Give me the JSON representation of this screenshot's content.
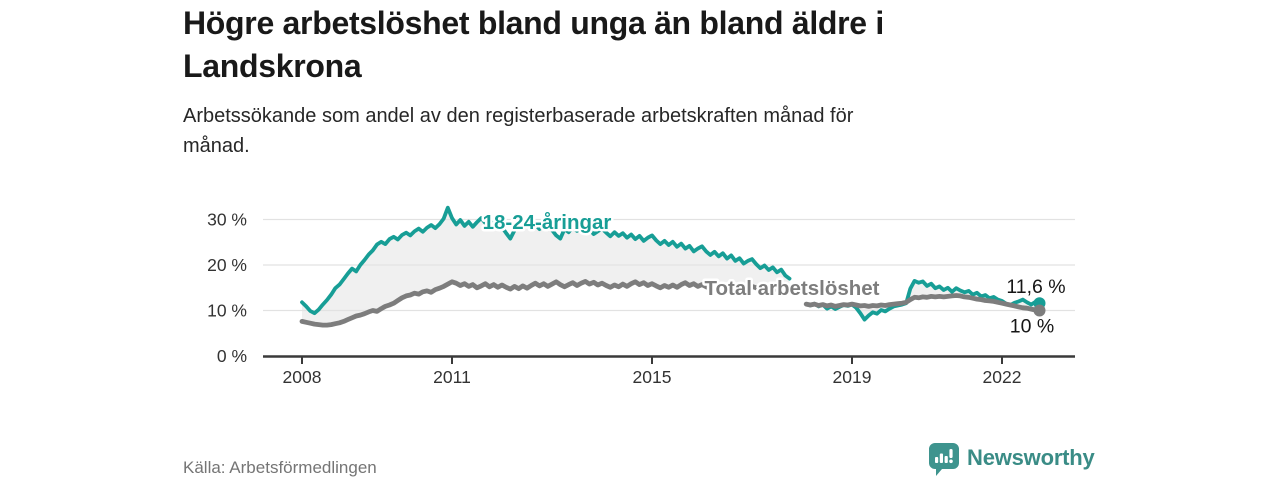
{
  "header": {
    "title": "Högre arbetslöshet bland unga än bland äldre i Landskrona",
    "title_lines": [
      "Högre arbetslöshet bland unga än bland äldre i",
      "Landskrona"
    ],
    "subtitle_lines": [
      "Arbetssökande som andel av den registerbaserade arbetskraften månad för",
      "månad."
    ]
  },
  "footer": {
    "source": "Källa: Arbetsförmedlingen",
    "brand": "Newsworthy"
  },
  "colors": {
    "youth_line": "#179e96",
    "total_line": "#7d7d7d",
    "band_fill": "#f0f0f0",
    "gridline": "#e2e2e2",
    "axis": "#3a3a3a",
    "tick_label": "#333333",
    "end_label": "#161616",
    "logo_teal": "#3e948e"
  },
  "chart_data": {
    "type": "line",
    "title": "Högre arbetslöshet bland unga än bland äldre i Landskrona",
    "subtitle": "Arbetssökande som andel av den registerbaserade arbetskraften månad för månad.",
    "xlabel": "",
    "ylabel": "",
    "grid": true,
    "legend_position": "inline-labels",
    "ylim": [
      0,
      33
    ],
    "yticks": [
      0,
      10,
      20,
      30
    ],
    "ytick_labels": [
      "0 %",
      "10 %",
      "20 %",
      "30 %"
    ],
    "xticks": [
      2008,
      2011,
      2015,
      2019,
      2022
    ],
    "xtick_labels": [
      "2008",
      "2011",
      "2015",
      "2019",
      "2022"
    ],
    "x_unit": "year-month",
    "note": "two segments per series due to statistics break late 2017",
    "series": [
      {
        "name": "18-24-åringar",
        "color": "#179e96",
        "label_pos": {
          "t": 2012.9,
          "v": 29.5
        },
        "end_value": 11.6,
        "end_label": "11,6 %",
        "end_label_pos": {
          "t": 2022.68,
          "v": 15.4
        },
        "segments": [
          {
            "start": 2008.0,
            "values": [
              11.8,
              10.9,
              9.9,
              9.4,
              10.2,
              11.3,
              12.3,
              13.5,
              14.9,
              15.7,
              16.9,
              18.1,
              19.2,
              18.6,
              20.0,
              21.1,
              22.3,
              23.2,
              24.5,
              25.1,
              24.6,
              25.7,
              26.2,
              25.6,
              26.6,
              27.1,
              26.5,
              27.4,
              28.0,
              27.3,
              28.2,
              28.8,
              28.1,
              29.0,
              30.2,
              32.6,
              30.3,
              28.9,
              29.9,
              28.6,
              29.5,
              28.4,
              29.4,
              30.3,
              29.2,
              30.0,
              28.7,
              29.5,
              28.3,
              27.0,
              25.8,
              27.6,
              28.7,
              28.0,
              29.0,
              28.3,
              28.9,
              27.9,
              28.5,
              29.0,
              27.7,
              26.5,
              25.8,
              27.9,
              27.2,
              28.3,
              27.5,
              28.1,
              27.0,
              27.8,
              26.8,
              27.4,
              28.0,
              27.1,
              26.3,
              27.2,
              26.4,
              27.0,
              26.0,
              26.7,
              25.7,
              26.4,
              25.3,
              26.0,
              26.5,
              25.4,
              24.6,
              25.3,
              24.4,
              25.1,
              24.0,
              24.7,
              23.6,
              24.2,
              23.0,
              23.6,
              24.1,
              23.0,
              22.2,
              22.9,
              21.9,
              22.6,
              21.4,
              22.1,
              20.9,
              21.5,
              20.3,
              20.9,
              21.3,
              20.2,
              19.3,
              19.9,
              18.9,
              19.5,
              18.4,
              19.0,
              17.7,
              17.0
            ]
          },
          {
            "start": 2018.0833,
            "values": [
              11.4,
              11.1,
              11.5,
              10.9,
              11.3,
              10.4,
              10.9,
              10.3,
              10.8,
              11.2,
              11.0,
              11.3,
              10.6,
              9.4,
              8.0,
              8.9,
              9.6,
              9.3,
              10.1,
              9.8,
              10.4,
              10.9,
              11.1,
              11.3,
              11.6,
              14.8,
              16.5,
              16.1,
              16.4,
              15.4,
              15.9,
              14.9,
              15.3,
              14.5,
              15.0,
              14.1,
              14.9,
              14.4,
              14.0,
              14.3,
              13.5,
              13.9,
              13.1,
              13.4,
              12.7,
              13.0,
              12.4,
              12.1,
              11.5,
              11.2,
              11.7,
              12.0,
              12.4,
              11.8,
              11.3,
              11.9,
              11.6
            ]
          }
        ]
      },
      {
        "name": "Total arbetslöshet",
        "color": "#7d7d7d",
        "label_pos": {
          "t": 2017.8,
          "v": 14.9
        },
        "end_value": 10,
        "end_label": "10 %",
        "end_label_pos": {
          "t": 2022.6,
          "v": 6.7
        },
        "segments": [
          {
            "start": 2008.0,
            "values": [
              7.6,
              7.4,
              7.2,
              7.0,
              6.9,
              6.8,
              6.8,
              6.9,
              7.1,
              7.3,
              7.6,
              8.0,
              8.4,
              8.8,
              9.0,
              9.3,
              9.7,
              10.0,
              9.8,
              10.4,
              10.9,
              11.2,
              11.6,
              12.2,
              12.8,
              13.2,
              13.4,
              13.8,
              13.6,
              14.1,
              14.3,
              14.0,
              14.6,
              14.9,
              15.3,
              15.8,
              16.3,
              16.0,
              15.5,
              15.9,
              15.3,
              15.7,
              15.0,
              15.4,
              15.9,
              15.2,
              15.7,
              15.1,
              15.6,
              15.1,
              14.7,
              15.3,
              14.8,
              15.4,
              14.9,
              15.5,
              16.0,
              15.4,
              15.9,
              15.3,
              15.8,
              16.3,
              15.7,
              15.2,
              15.7,
              16.1,
              15.5,
              16.0,
              16.4,
              15.8,
              16.2,
              15.6,
              16.0,
              15.5,
              15.1,
              15.6,
              15.2,
              15.8,
              15.3,
              15.9,
              16.3,
              15.7,
              16.1,
              15.5,
              15.9,
              15.4,
              15.0,
              15.5,
              15.1,
              15.6,
              15.1,
              15.7,
              16.1,
              15.5,
              15.9,
              15.3,
              15.7,
              15.2,
              14.9,
              15.3,
              15.0,
              15.4,
              14.9,
              15.3,
              15.6,
              15.1,
              15.4,
              15.0,
              15.3,
              15.0,
              14.7,
              15.0,
              14.7,
              15.0,
              14.6,
              14.9,
              14.5,
              14.7
            ]
          },
          {
            "start": 2018.0833,
            "values": [
              11.4,
              11.2,
              11.4,
              11.1,
              11.3,
              11.0,
              11.2,
              10.9,
              11.1,
              11.3,
              11.2,
              11.4,
              11.2,
              11.0,
              11.1,
              10.9,
              11.1,
              11.0,
              11.2,
              11.1,
              11.3,
              11.4,
              11.5,
              11.6,
              11.8,
              12.4,
              12.9,
              12.8,
              13.0,
              12.9,
              13.1,
              13.0,
              13.1,
              13.0,
              13.1,
              13.2,
              13.3,
              13.2,
              13.0,
              12.9,
              12.7,
              12.5,
              12.4,
              12.2,
              12.1,
              12.0,
              11.8,
              11.6,
              11.4,
              11.2,
              11.0,
              10.8,
              10.6,
              10.5,
              10.3,
              10.1,
              10.0
            ]
          }
        ]
      }
    ]
  }
}
